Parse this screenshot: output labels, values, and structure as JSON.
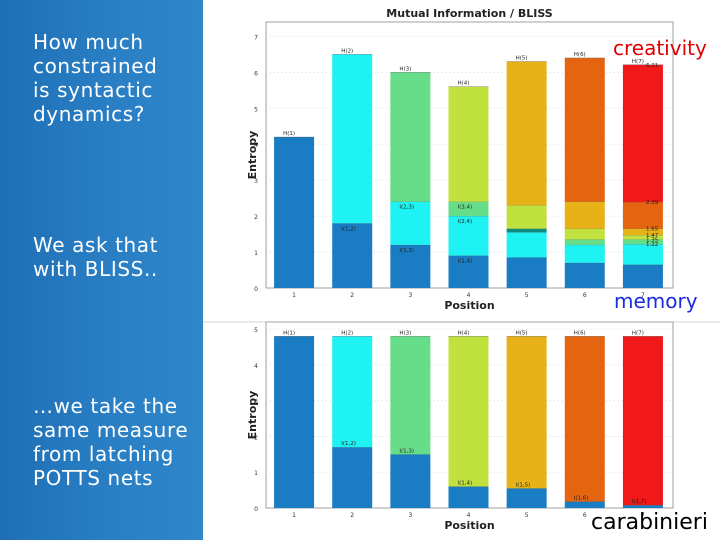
{
  "slide": {
    "text1": "How much\nconstrained\nis syntactic\ndynamics?",
    "text2": "We ask that\nwith BLISS..",
    "text3": "…we take the\nsame measure\nfrom latching\nPOTTS nets",
    "creativity": "creativity",
    "memory": "memory",
    "carabinieri": "carabinieri",
    "colors": {
      "panel": "#2a7fc4",
      "creativity": "#e00000",
      "memory": "#1a2be0"
    }
  },
  "chart_data": [
    {
      "type": "bar",
      "title": "Mutual Information / BLISS",
      "xlabel": "Position",
      "ylabel": "Entropy",
      "ylim": [
        0,
        7.4
      ],
      "yticks": [
        0,
        1,
        2,
        3,
        4,
        5,
        6,
        7
      ],
      "categories": [
        "1",
        "2",
        "3",
        "4",
        "5",
        "6",
        "7"
      ],
      "bar_colors": [
        "#1a7cc2",
        "#1ef2f2",
        "#66dd88",
        "#c0e13e",
        "#e6b218",
        "#e56410",
        "#f01818"
      ],
      "totals": [
        4.2,
        6.5,
        6.0,
        5.6,
        6.3,
        6.4,
        6.21
      ],
      "entropy_labels": [
        "H(1)",
        "H(2)",
        "H(3)",
        "H(4)",
        "H(5)",
        "H(6)",
        "H(7)"
      ],
      "mi_labels": [
        "",
        "I(1,2)",
        "I(1,3)",
        "I(1,4)",
        "",
        "",
        ""
      ],
      "mi_labels_2": [
        "",
        "",
        "I(2,3)",
        "I(2,4)",
        "",
        "",
        ""
      ],
      "mi_labels_3": [
        "",
        "",
        "",
        "I(3,4)",
        "",
        "",
        ""
      ],
      "segments": [
        [
          [
            4.2,
            "#1a7cc2"
          ]
        ],
        [
          [
            1.8,
            "#1a7cc2"
          ],
          [
            4.7,
            "#1ef2f2"
          ]
        ],
        [
          [
            1.2,
            "#1a7cc2"
          ],
          [
            1.2,
            "#1ef2f2"
          ],
          [
            3.6,
            "#66dd88"
          ]
        ],
        [
          [
            0.9,
            "#1a7cc2"
          ],
          [
            1.1,
            "#1ef2f2"
          ],
          [
            0.4,
            "#66dd88"
          ],
          [
            3.2,
            "#c0e13e"
          ]
        ],
        [
          [
            0.85,
            "#1a7cc2"
          ],
          [
            0.7,
            "#1ef2f2"
          ],
          [
            0.1,
            "#0f8c7a"
          ],
          [
            0.65,
            "#c0e13e"
          ],
          [
            4.0,
            "#e6b218"
          ]
        ],
        [
          [
            0.7,
            "#1a7cc2"
          ],
          [
            0.5,
            "#1ef2f2"
          ],
          [
            0.15,
            "#66dd88"
          ],
          [
            0.3,
            "#c0e13e"
          ],
          [
            0.75,
            "#e6b218"
          ],
          [
            4.0,
            "#e56410"
          ]
        ],
        [
          [
            0.65,
            "#1a7cc2"
          ],
          [
            0.57,
            "#1ef2f2"
          ],
          [
            0.13,
            "#66dd88"
          ],
          [
            0.12,
            "#c0e13e"
          ],
          [
            0.18,
            "#e6b218"
          ],
          [
            0.74,
            "#e56410"
          ],
          [
            3.82,
            "#f01818"
          ]
        ]
      ],
      "right_annotations": [
        {
          "y": 6.21,
          "text": "6.21"
        },
        {
          "y": 2.39,
          "text": "2.39"
        },
        {
          "y": 1.65,
          "text": "1.65"
        },
        {
          "y": 1.47,
          "text": "1.47"
        },
        {
          "y": 1.35,
          "text": "1.35"
        },
        {
          "y": 1.22,
          "text": "1.22"
        }
      ]
    },
    {
      "type": "bar",
      "title": "",
      "xlabel": "Position",
      "ylabel": "Entropy",
      "ylim": [
        0,
        5.2
      ],
      "yticks": [
        0,
        1,
        2,
        3,
        4,
        5
      ],
      "categories": [
        "1",
        "2",
        "3",
        "4",
        "5",
        "6",
        "7"
      ],
      "bar_colors": [
        "#1a7cc2",
        "#1ef2f2",
        "#66dd88",
        "#c0e13e",
        "#e6b218",
        "#e56410",
        "#f01818"
      ],
      "totals": [
        4.8,
        4.8,
        4.8,
        4.8,
        4.8,
        4.8,
        4.8
      ],
      "entropy_labels": [
        "H(1)",
        "H(2)",
        "H(3)",
        "H(4)",
        "H(5)",
        "H(6)",
        "H(7)"
      ],
      "mi_labels": [
        "",
        "I(1,2)",
        "I(1,3)",
        "I(1,4)",
        "I(1,5)",
        "I(1,6)",
        "I(1,7)"
      ],
      "segments": [
        [
          [
            4.8,
            "#1a7cc2"
          ]
        ],
        [
          [
            1.7,
            "#1a7cc2"
          ],
          [
            3.1,
            "#1ef2f2"
          ]
        ],
        [
          [
            1.5,
            "#1a7cc2"
          ],
          [
            3.3,
            "#66dd88"
          ]
        ],
        [
          [
            0.6,
            "#1a7cc2"
          ],
          [
            4.2,
            "#c0e13e"
          ]
        ],
        [
          [
            0.55,
            "#1a7cc2"
          ],
          [
            4.25,
            "#e6b218"
          ]
        ],
        [
          [
            0.18,
            "#1a7cc2"
          ],
          [
            4.62,
            "#e56410"
          ]
        ],
        [
          [
            0.08,
            "#1a7cc2"
          ],
          [
            4.72,
            "#f01818"
          ]
        ]
      ]
    }
  ]
}
